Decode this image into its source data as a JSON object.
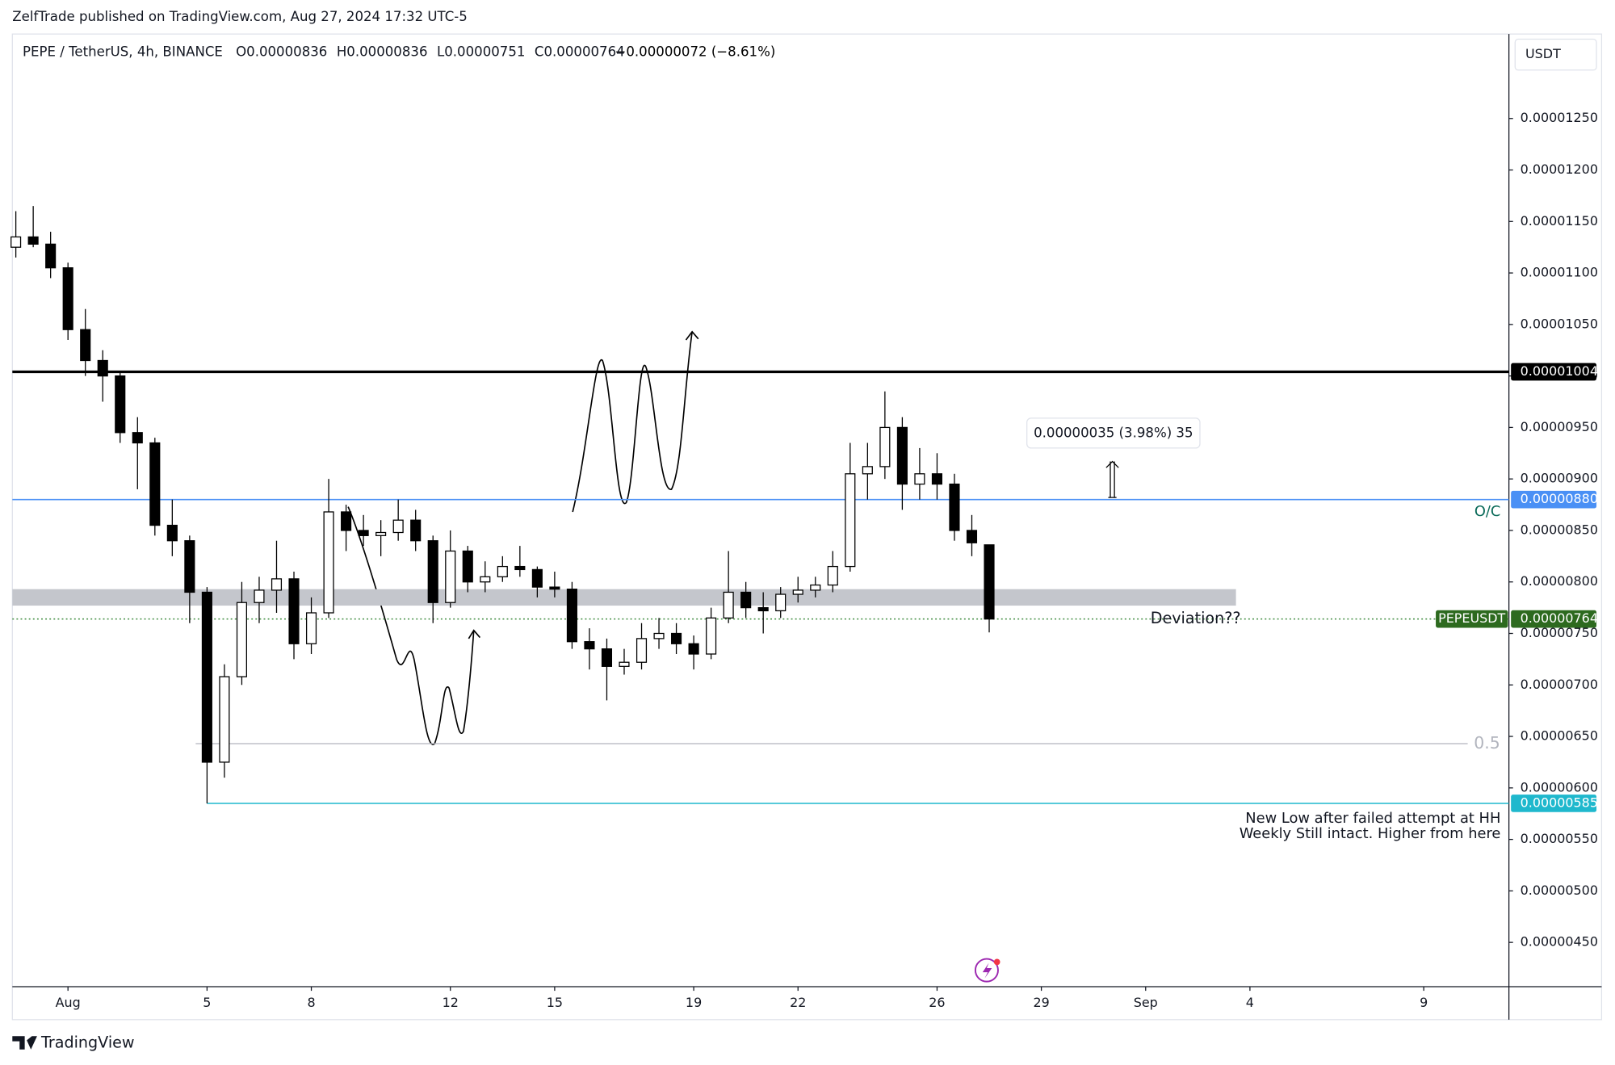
{
  "header": {
    "published": "ZelfTrade published on TradingView.com, Aug 27, 2024 17:32 UTC-5",
    "symbol": "PEPE / TetherUS, 4h, BINANCE",
    "ohlc": [
      {
        "label": "O",
        "value": "0.00000836"
      },
      {
        "label": "H",
        "value": "0.00000836"
      },
      {
        "label": "L",
        "value": "0.00000751"
      },
      {
        "label": "C",
        "value": "0.00000764"
      }
    ],
    "change": "−0.00000072 (−8.61%)",
    "currency": "USDT"
  },
  "footer": {
    "brand": "TradingView"
  },
  "chart_data": {
    "type": "candlestick",
    "x": [
      -0.5,
      0,
      0.5,
      1,
      1.5,
      2,
      2.5,
      3,
      3.5,
      4,
      4.5,
      5,
      5.5,
      6,
      6.5,
      7,
      7.5,
      8,
      8.5,
      9,
      9.5,
      10,
      10.5,
      11,
      11.5,
      12,
      12.5,
      13,
      13.5,
      14,
      14.5,
      15,
      15.5,
      16,
      16.5,
      17,
      17.5,
      18,
      18.5,
      19,
      19.5,
      20,
      20.5,
      21,
      21.5,
      22,
      22.5,
      23,
      23.5,
      24,
      24.5,
      25,
      25.5,
      26,
      26.5,
      27,
      27.5
    ],
    "open": [
      1.125e-05,
      1.135e-05,
      1.128e-05,
      1.105e-05,
      1.045e-05,
      1.015e-05,
      1e-05,
      9.45e-06,
      9.35e-06,
      8.55e-06,
      8.4e-06,
      7.9e-06,
      6.25e-06,
      7.08e-06,
      7.8e-06,
      7.92e-06,
      8.03e-06,
      7.4e-06,
      7.7e-06,
      8.68e-06,
      8.5e-06,
      8.45e-06,
      8.48e-06,
      8.6e-06,
      8.4e-06,
      7.8e-06,
      8.3e-06,
      8e-06,
      8.05e-06,
      8.15e-06,
      8.12e-06,
      7.95e-06,
      7.93e-06,
      7.42e-06,
      7.35e-06,
      7.18e-06,
      7.22e-06,
      7.45e-06,
      7.5e-06,
      7.4e-06,
      7.3e-06,
      7.65e-06,
      7.9e-06,
      7.75e-06,
      7.72e-06,
      7.88e-06,
      7.92e-06,
      7.97e-06,
      8.15e-06,
      9.05e-06,
      9.12e-06,
      9.5e-06,
      8.95e-06,
      9.05e-06,
      8.95e-06,
      8.5e-06,
      8.36e-06
    ],
    "high": [
      1.16e-05,
      1.165e-05,
      1.14e-05,
      1.11e-05,
      1.065e-05,
      1.025e-05,
      1.005e-05,
      9.6e-06,
      9.4e-06,
      8.8e-06,
      8.45e-06,
      7.95e-06,
      7.2e-06,
      8e-06,
      8.05e-06,
      8.4e-06,
      8.1e-06,
      7.85e-06,
      9e-06,
      8.75e-06,
      8.65e-06,
      8.6e-06,
      8.8e-06,
      8.7e-06,
      8.45e-06,
      8.5e-06,
      8.35e-06,
      8.2e-06,
      8.25e-06,
      8.35e-06,
      8.15e-06,
      8.1e-06,
      8e-06,
      7.55e-06,
      7.45e-06,
      7.35e-06,
      7.6e-06,
      7.65e-06,
      7.6e-06,
      7.48e-06,
      7.75e-06,
      8.3e-06,
      8e-06,
      7.9e-06,
      7.95e-06,
      8.05e-06,
      8.05e-06,
      8.3e-06,
      9.35e-06,
      9.35e-06,
      9.85e-06,
      9.6e-06,
      9.3e-06,
      9.25e-06,
      9.05e-06,
      8.65e-06,
      8.36e-06
    ],
    "low": [
      1.115e-05,
      1.125e-05,
      1.095e-05,
      1.035e-05,
      1e-05,
      9.75e-06,
      9.35e-06,
      8.9e-06,
      8.45e-06,
      8.25e-06,
      7.6e-06,
      5.85e-06,
      6.1e-06,
      7e-06,
      7.6e-06,
      7.7e-06,
      7.25e-06,
      7.3e-06,
      7.65e-06,
      8.3e-06,
      8.35e-06,
      8.25e-06,
      8.4e-06,
      8.3e-06,
      7.6e-06,
      7.75e-06,
      7.9e-06,
      7.9e-06,
      8e-06,
      8.05e-06,
      7.85e-06,
      7.85e-06,
      7.35e-06,
      7.15e-06,
      6.85e-06,
      7.1e-06,
      7.15e-06,
      7.35e-06,
      7.3e-06,
      7.15e-06,
      7.25e-06,
      7.6e-06,
      7.65e-06,
      7.5e-06,
      7.65e-06,
      7.8e-06,
      7.85e-06,
      7.9e-06,
      8.1e-06,
      8.8e-06,
      9e-06,
      8.7e-06,
      8.8e-06,
      8.8e-06,
      8.4e-06,
      8.25e-06,
      7.51e-06
    ],
    "close": [
      1.135e-05,
      1.128e-05,
      1.105e-05,
      1.045e-05,
      1.015e-05,
      1e-05,
      9.45e-06,
      9.35e-06,
      8.55e-06,
      8.4e-06,
      7.9e-06,
      6.25e-06,
      7.08e-06,
      7.8e-06,
      7.92e-06,
      8.03e-06,
      7.4e-06,
      7.7e-06,
      8.68e-06,
      8.5e-06,
      8.45e-06,
      8.48e-06,
      8.6e-06,
      8.4e-06,
      7.8e-06,
      8.3e-06,
      8e-06,
      8.05e-06,
      8.15e-06,
      8.12e-06,
      7.95e-06,
      7.93e-06,
      7.42e-06,
      7.35e-06,
      7.18e-06,
      7.22e-06,
      7.45e-06,
      7.5e-06,
      7.4e-06,
      7.3e-06,
      7.65e-06,
      7.9e-06,
      7.75e-06,
      7.72e-06,
      7.88e-06,
      7.92e-06,
      7.97e-06,
      8.15e-06,
      9.05e-06,
      9.12e-06,
      9.5e-06,
      8.95e-06,
      9.05e-06,
      8.95e-06,
      8.5e-06,
      8.38e-06,
      7.64e-06
    ],
    "up_color": "#ffffff",
    "down_color": "#000000",
    "xlim": [
      -0.6,
      42.45
    ],
    "xticks": [
      {
        "value": 1,
        "label": "Aug"
      },
      5,
      8,
      12,
      15,
      19,
      22,
      26,
      29,
      {
        "value": 32,
        "label": "Sep"
      },
      {
        "value": 35,
        "label": "4"
      },
      {
        "value": 40,
        "label": "9"
      }
    ],
    "ylim": [
      4.07e-06,
      1.332e-05
    ],
    "yticks": [
      {
        "value": 1.25e-05,
        "label": "0.00001250"
      },
      {
        "value": 1.2e-05,
        "label": "0.00001200"
      },
      {
        "value": 1.15e-05,
        "label": "0.00001150"
      },
      {
        "value": 1.1e-05,
        "label": "0.00001100"
      },
      {
        "value": 1.05e-05,
        "label": "0.00001050"
      },
      {
        "value": 1e-05,
        "label": "0.00001000"
      },
      {
        "value": 9.5e-06,
        "label": "0.00000950"
      },
      {
        "value": 9e-06,
        "label": "0.00000900"
      },
      {
        "value": 8.5e-06,
        "label": "0.00000850"
      },
      {
        "value": 8e-06,
        "label": "0.00000800"
      },
      {
        "value": 7.5e-06,
        "label": "0.00000750"
      },
      {
        "value": 7e-06,
        "label": "0.00000700"
      },
      {
        "value": 6.5e-06,
        "label": "0.00000650"
      },
      {
        "value": 6e-06,
        "label": "0.00000600"
      },
      {
        "value": 5.5e-06,
        "label": "0.00000550"
      },
      {
        "value": 5e-06,
        "label": "0.00000500"
      },
      {
        "value": 4.5e-06,
        "label": "0.00000450"
      }
    ],
    "levels": [
      {
        "label": "0.00001004",
        "value": 1.004e-05,
        "color": "#000000"
      },
      {
        "label": "0.00000880",
        "value": 8.8e-06,
        "color": "#4a90f5"
      },
      {
        "label": "0.00000585",
        "value": 5.85e-06,
        "color": "#1fb8cd"
      },
      {
        "name": "PEPEUSDT",
        "label": "0.00000764",
        "value": 7.64e-06,
        "color": "#2d6a1f"
      }
    ],
    "zone": {
      "low": 7.77e-06,
      "high": 7.93e-06,
      "color": "#c4c6cc"
    },
    "fib_level": {
      "ratio": 0.5,
      "price": 6.43e-06,
      "color": "#b2b5be"
    },
    "measure": {
      "text": "0.00000035 (3.98%) 35",
      "from": 8.82e-06,
      "to": 9.17e-06
    },
    "annotations": [
      "O/C",
      "Deviation??",
      "New Low after failed attempt at HH",
      "Weekly Still intact. Higher from here"
    ]
  }
}
